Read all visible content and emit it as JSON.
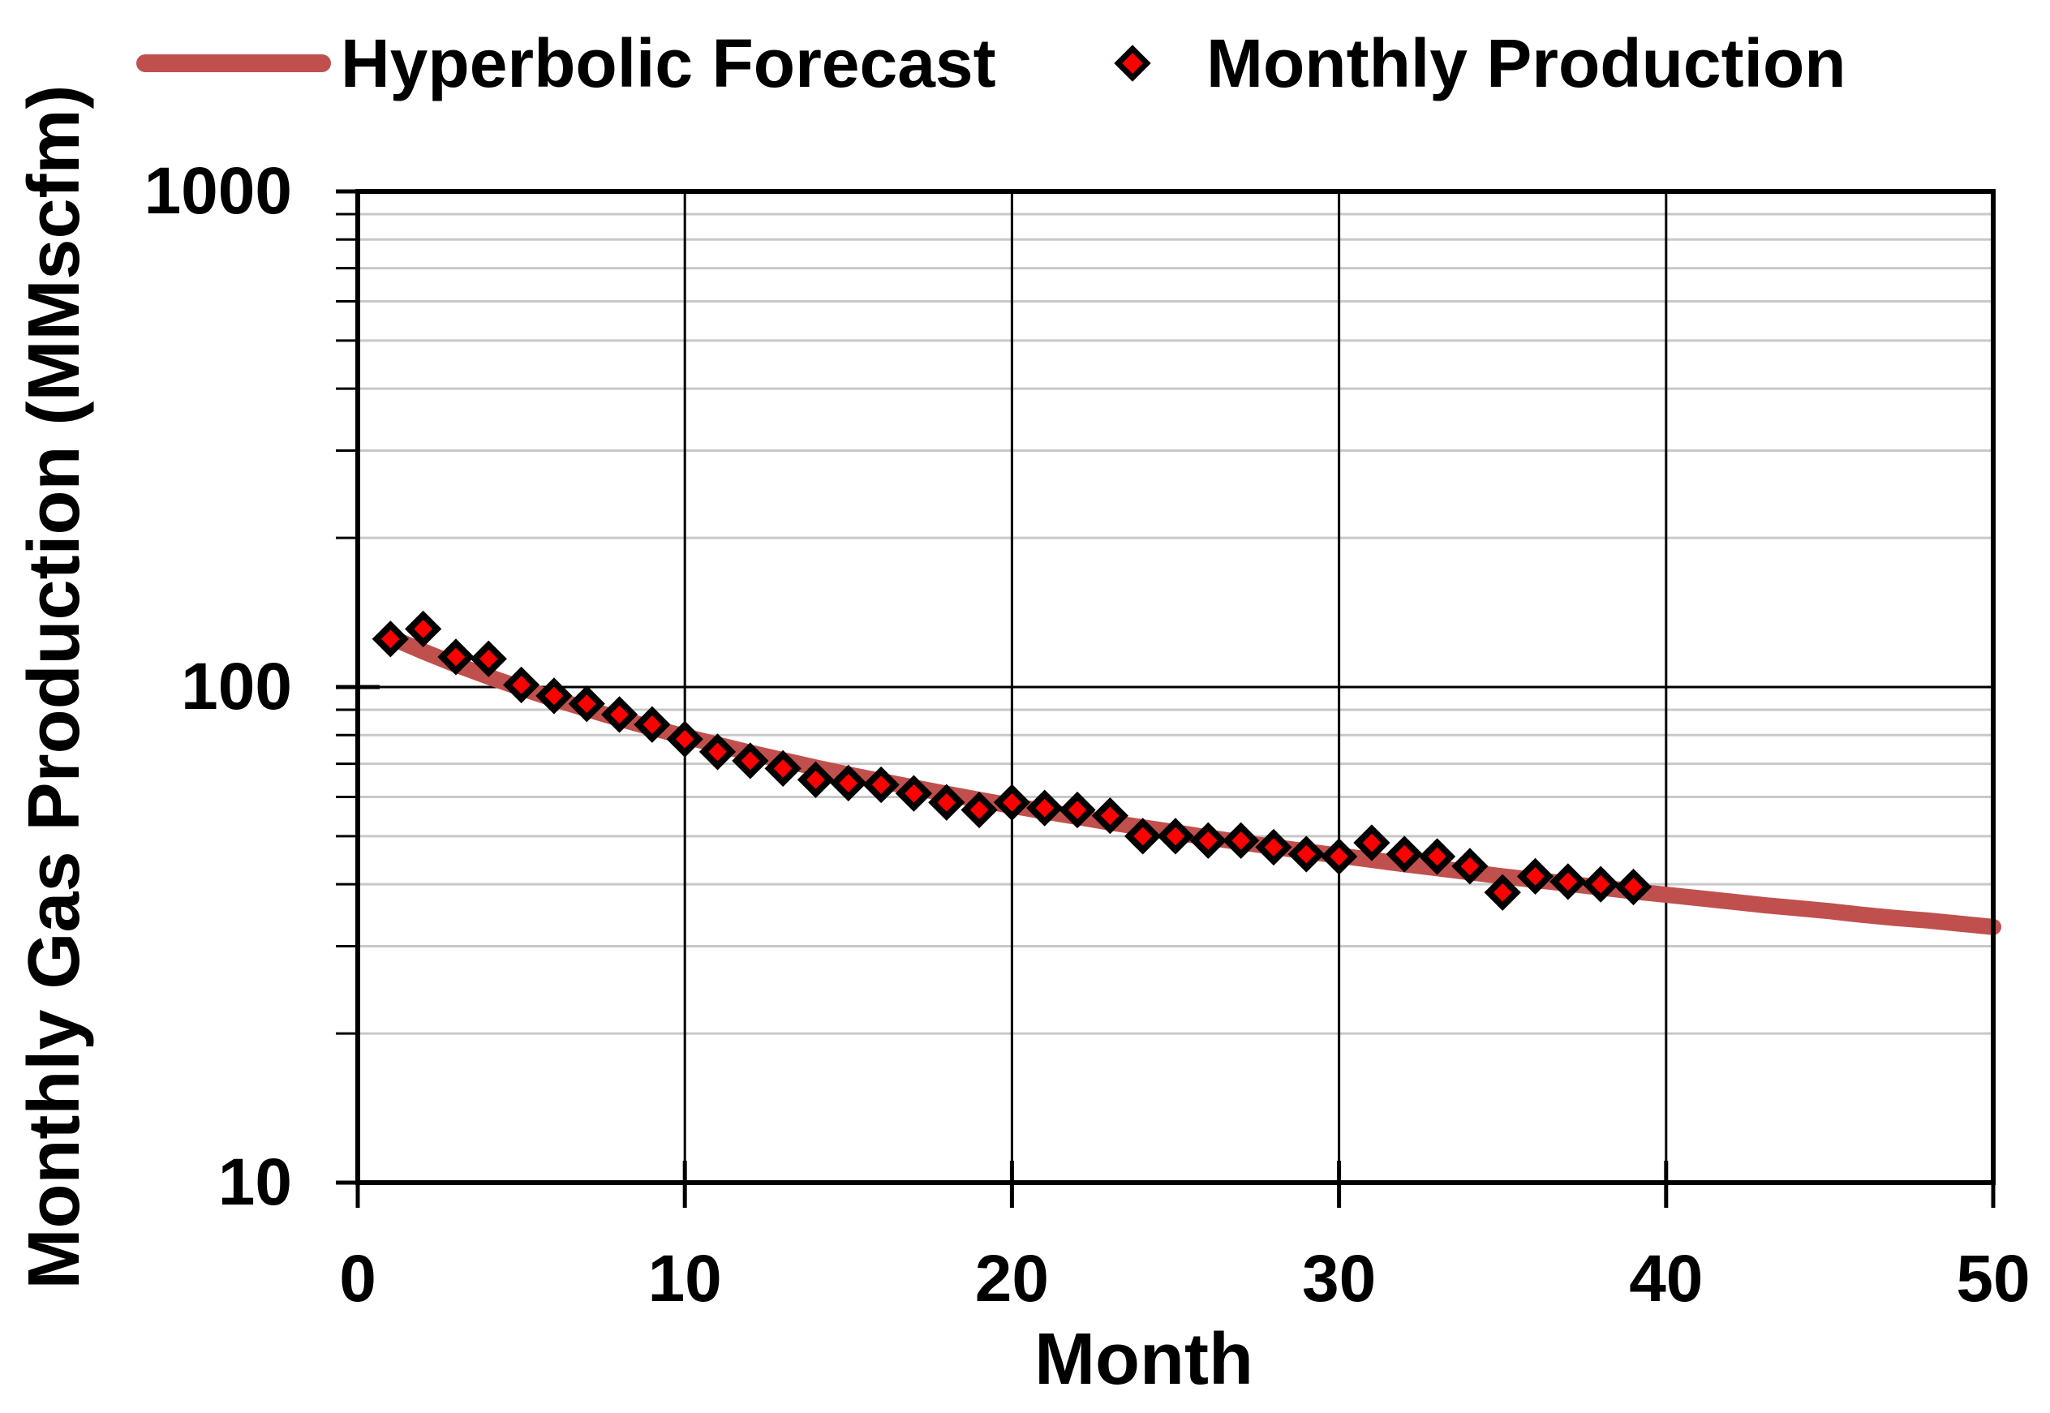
{
  "chart_data": {
    "type": "line+scatter",
    "title": "",
    "xlabel": "Month",
    "ylabel": "Monthly Gas Production (MMscfm)",
    "xlim": [
      0,
      50
    ],
    "ylim": [
      10,
      1000
    ],
    "yscale": "log",
    "xticks": [
      0,
      10,
      20,
      30,
      40,
      50
    ],
    "yticks": [
      1000,
      100,
      10
    ],
    "grid": {
      "y_minor": true,
      "major_color": "#000000",
      "minor_color": "#C8C8C8"
    },
    "legend_position": "top",
    "series": [
      {
        "name": "Hyperbolic Forecast",
        "type": "line",
        "color": "#C0504D",
        "x": [
          1,
          2,
          3,
          4,
          5,
          6,
          7,
          8,
          9,
          10,
          11,
          12,
          13,
          14,
          15,
          16,
          17,
          18,
          19,
          20,
          21,
          22,
          23,
          24,
          25,
          26,
          27,
          28,
          29,
          30,
          31,
          32,
          33,
          34,
          35,
          36,
          37,
          38,
          39,
          40,
          41,
          42,
          43,
          44,
          45,
          46,
          47,
          48,
          49,
          50
        ],
        "values": [
          126.0,
          118.0,
          111.0,
          104.9,
          99.5,
          94.6,
          90.3,
          86.3,
          82.7,
          79.5,
          76.5,
          73.7,
          71.2,
          68.8,
          66.6,
          64.6,
          62.7,
          60.9,
          59.2,
          57.6,
          56.1,
          54.7,
          53.3,
          52.1,
          50.9,
          49.7,
          48.6,
          47.6,
          46.6,
          45.7,
          44.8,
          43.9,
          43.1,
          42.3,
          41.5,
          40.8,
          40.1,
          39.4,
          38.7,
          38.1,
          37.5,
          36.9,
          36.3,
          35.8,
          35.3,
          34.7,
          34.2,
          33.8,
          33.3,
          32.8
        ]
      },
      {
        "name": "Monthly Production",
        "type": "scatter",
        "marker": "diamond",
        "fill": "#FF0000",
        "stroke": "#000000",
        "x": [
          1,
          2,
          3,
          4,
          5,
          6,
          7,
          8,
          9,
          10,
          11,
          12,
          13,
          14,
          15,
          16,
          17,
          18,
          19,
          20,
          21,
          22,
          23,
          24,
          25,
          26,
          27,
          28,
          29,
          30,
          31,
          32,
          33,
          34,
          35,
          36,
          37,
          38,
          39
        ],
        "values": [
          125,
          131,
          115,
          114,
          101,
          96,
          92.5,
          88,
          84,
          78.5,
          74,
          71,
          68.5,
          65,
          64,
          63.5,
          61,
          58.5,
          56.5,
          58.5,
          57,
          56.5,
          55,
          50,
          50,
          49,
          49,
          47.5,
          46,
          45.5,
          48.5,
          46,
          45.5,
          43.5,
          38.5,
          41.5,
          40.5,
          40,
          39.5
        ]
      }
    ]
  }
}
